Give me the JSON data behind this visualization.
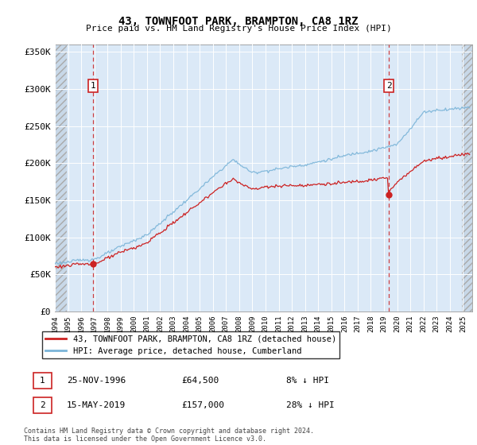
{
  "title": "43, TOWNFOOT PARK, BRAMPTON, CA8 1RZ",
  "subtitle": "Price paid vs. HM Land Registry's House Price Index (HPI)",
  "ylabel_ticks": [
    "£0",
    "£50K",
    "£100K",
    "£150K",
    "£200K",
    "£250K",
    "£300K",
    "£350K"
  ],
  "ytick_values": [
    0,
    50000,
    100000,
    150000,
    200000,
    250000,
    300000,
    350000
  ],
  "ylim": [
    0,
    360000
  ],
  "xlim_start": 1994.0,
  "xlim_end": 2025.7,
  "hpi_color": "#7ab4d8",
  "price_color": "#cc2222",
  "sale1_x": 1996.9,
  "sale1_y": 64500,
  "sale2_x": 2019.37,
  "sale2_y": 157000,
  "legend_label1": "43, TOWNFOOT PARK, BRAMPTON, CA8 1RZ (detached house)",
  "legend_label2": "HPI: Average price, detached house, Cumberland",
  "note1_num": "1",
  "note1_date": "25-NOV-1996",
  "note1_price": "£64,500",
  "note1_hpi": "8% ↓ HPI",
  "note2_num": "2",
  "note2_date": "15-MAY-2019",
  "note2_price": "£157,000",
  "note2_hpi": "28% ↓ HPI",
  "footnote": "Contains HM Land Registry data © Crown copyright and database right 2024.\nThis data is licensed under the Open Government Licence v3.0.",
  "hatch_color": "#aaaaaa",
  "bg_color": "#dbe9f7",
  "hatch_bg_color": "#c8d8e8"
}
